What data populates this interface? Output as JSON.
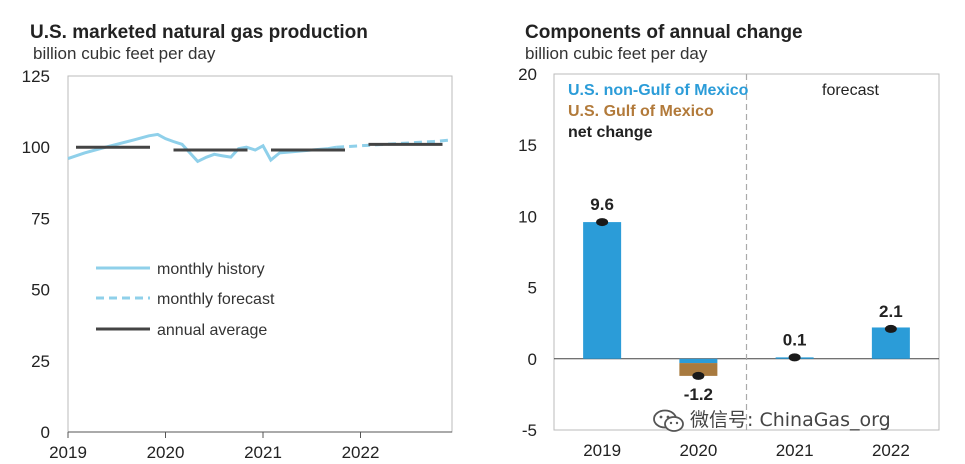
{
  "chart_data": [
    {
      "type": "line",
      "title": "U.S. marketed natural gas production",
      "ylabel": "billion cubic feet per day",
      "ylim": [
        0,
        125
      ],
      "yticks": [
        0,
        25,
        50,
        75,
        100,
        125
      ],
      "xticks": [
        "2019",
        "2020",
        "2021",
        "2022"
      ],
      "legend": [
        {
          "label": "monthly history",
          "style": "solid"
        },
        {
          "label": "monthly forecast",
          "style": "dashed"
        },
        {
          "label": "annual average",
          "style": "annual"
        }
      ],
      "series": [
        {
          "name": "monthly history",
          "x": [
            2019.0,
            2019.17,
            2019.33,
            2019.5,
            2019.67,
            2019.83,
            2019.92,
            2020.0,
            2020.08,
            2020.17,
            2020.25,
            2020.33,
            2020.42,
            2020.5,
            2020.58,
            2020.67,
            2020.75,
            2020.83,
            2020.92,
            2021.0,
            2021.08,
            2021.17,
            2021.33,
            2021.5,
            2021.67,
            2021.75
          ],
          "values": [
            96,
            98,
            99.5,
            101,
            102.5,
            104,
            104.5,
            103,
            102,
            101,
            98,
            95,
            96.5,
            97.5,
            97,
            96.5,
            99.5,
            100,
            99,
            100.5,
            95.5,
            98,
            98.5,
            99,
            99.5,
            100
          ]
        },
        {
          "name": "monthly forecast",
          "x": [
            2021.75,
            2022.0,
            2022.25,
            2022.5,
            2022.75,
            2022.92
          ],
          "values": [
            100,
            100.5,
            101,
            101.5,
            102,
            102.5
          ]
        },
        {
          "name": "annual average",
          "segments": [
            {
              "year": "2019",
              "value": 100
            },
            {
              "year": "2020",
              "value": 99
            },
            {
              "year": "2021",
              "value": 99
            },
            {
              "year": "2022",
              "value": 101
            }
          ]
        }
      ]
    },
    {
      "type": "bar",
      "title": "Components of annual change",
      "ylabel": "billion cubic  feet per day",
      "ylim": [
        -5,
        20
      ],
      "yticks": [
        -5,
        0,
        5,
        10,
        15,
        20
      ],
      "categories": [
        "2019",
        "2020",
        "2021",
        "2022"
      ],
      "forecast_label": "forecast",
      "forecast_from": "2021",
      "legend": [
        {
          "label": "U.S. non-Gulf of Mexico",
          "color": "#2b9cd8"
        },
        {
          "label": "U.S. Gulf of Mexico",
          "color": "#a87a3f"
        },
        {
          "label": "net change",
          "color": "#222222"
        }
      ],
      "series": [
        {
          "name": "U.S. non-Gulf of Mexico",
          "values": [
            9.6,
            -0.3,
            0.1,
            2.2
          ]
        },
        {
          "name": "U.S. Gulf of Mexico",
          "values": [
            0.0,
            -0.9,
            0.0,
            0.0
          ]
        },
        {
          "name": "net change",
          "values": [
            9.6,
            -1.2,
            0.1,
            2.1
          ],
          "labels": [
            "9.6",
            "-1.2",
            "0.1",
            "2.1"
          ]
        }
      ]
    }
  ],
  "watermark": "微信号: ChinaGas_org",
  "colors": {
    "history": "#8fd0ea",
    "forecast": "#8fd0ea",
    "annual": "#444444",
    "non_gulf": "#2b9cd8",
    "gulf": "#a87a3f",
    "net": "#1a1a1a",
    "legend_blue": "#2b9cd8",
    "legend_brown": "#b27a3a"
  }
}
